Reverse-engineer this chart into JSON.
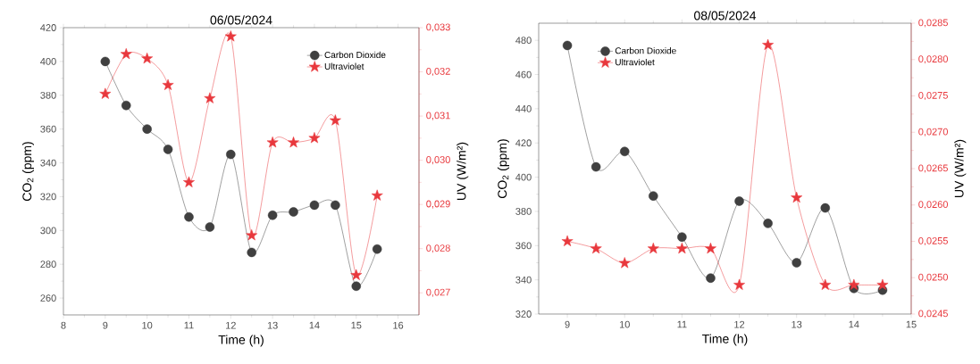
{
  "chart_data": [
    {
      "type": "line",
      "title": "06/05/2024",
      "xlabel": "Time (h)",
      "ylabel": "CO$_{2}$ (ppm)",
      "y2label": "UV (W/m²)",
      "x": [
        9,
        9.5,
        10,
        10.5,
        11,
        11.5,
        12,
        12.5,
        13,
        13.5,
        14,
        14.5,
        15,
        15.5
      ],
      "series": [
        {
          "name": "Carbon Dioxide",
          "color": "#404040",
          "marker": "circle",
          "values": [
            400,
            374,
            360,
            348,
            308,
            302,
            345,
            287,
            309,
            311,
            315,
            315,
            267,
            289
          ]
        },
        {
          "name": "Ultraviolet",
          "color": "#e8383d",
          "marker": "star",
          "axis": "y2",
          "values": [
            0.0315,
            0.0324,
            0.0323,
            0.0317,
            0.0295,
            0.0314,
            0.0328,
            0.0283,
            0.0304,
            0.0304,
            0.0305,
            0.0309,
            0.0274,
            0.0292
          ]
        }
      ],
      "xlim": [
        8,
        16.5
      ],
      "xticks": [
        8,
        9,
        10,
        11,
        12,
        13,
        14,
        15,
        16
      ],
      "ylim": [
        250,
        420
      ],
      "yticks": [
        260,
        280,
        300,
        320,
        340,
        360,
        380,
        400,
        420
      ],
      "y2lim": [
        0.0265,
        0.033
      ],
      "y2ticks": [
        {
          "value": 0.027,
          "label": "0,027"
        },
        {
          "value": 0.028,
          "label": "0,028"
        },
        {
          "value": 0.029,
          "label": "0,029"
        },
        {
          "value": 0.03,
          "label": "0,030"
        },
        {
          "value": 0.031,
          "label": "0,031"
        },
        {
          "value": 0.032,
          "label": "0,032"
        },
        {
          "value": 0.033,
          "label": "0,033"
        }
      ],
      "legend": "top right"
    },
    {
      "type": "line",
      "title": "08/05/2024",
      "xlabel": "Time (h)",
      "ylabel": "CO$_{2}$ (ppm)",
      "y2label": "UV (W/m²)",
      "x": [
        9,
        9.5,
        10,
        10.5,
        11,
        11.5,
        12,
        12.5,
        13,
        13.5,
        14,
        14.5
      ],
      "series": [
        {
          "name": "Carbon Dioxide",
          "color": "#404040",
          "marker": "circle",
          "values": [
            477,
            406,
            415,
            389,
            365,
            341,
            386,
            373,
            350,
            382,
            335,
            334
          ]
        },
        {
          "name": "Ultraviolet",
          "color": "#e8383d",
          "marker": "star",
          "axis": "y2",
          "values": [
            0.0255,
            0.0254,
            0.0252,
            0.0254,
            0.0254,
            0.0254,
            0.0249,
            0.0282,
            0.0261,
            0.0249,
            0.0249,
            0.0249
          ]
        }
      ],
      "xlim": [
        8.5,
        15
      ],
      "xticks": [
        9,
        10,
        11,
        12,
        13,
        14,
        15
      ],
      "ylim": [
        320,
        490
      ],
      "yticks": [
        320,
        340,
        360,
        380,
        400,
        420,
        440,
        460,
        480
      ],
      "y2lim": [
        0.0245,
        0.0285
      ],
      "y2ticks": [
        {
          "value": 0.0245,
          "label": "0,0245"
        },
        {
          "value": 0.025,
          "label": "0,0250"
        },
        {
          "value": 0.0255,
          "label": "0,0255"
        },
        {
          "value": 0.026,
          "label": "0,0260"
        },
        {
          "value": 0.0265,
          "label": "0,0265"
        },
        {
          "value": 0.027,
          "label": "0,0270"
        },
        {
          "value": 0.0275,
          "label": "0,0275"
        },
        {
          "value": 0.028,
          "label": "0,0280"
        },
        {
          "value": 0.0285,
          "label": "0,0285"
        }
      ],
      "legend": "top left"
    }
  ]
}
